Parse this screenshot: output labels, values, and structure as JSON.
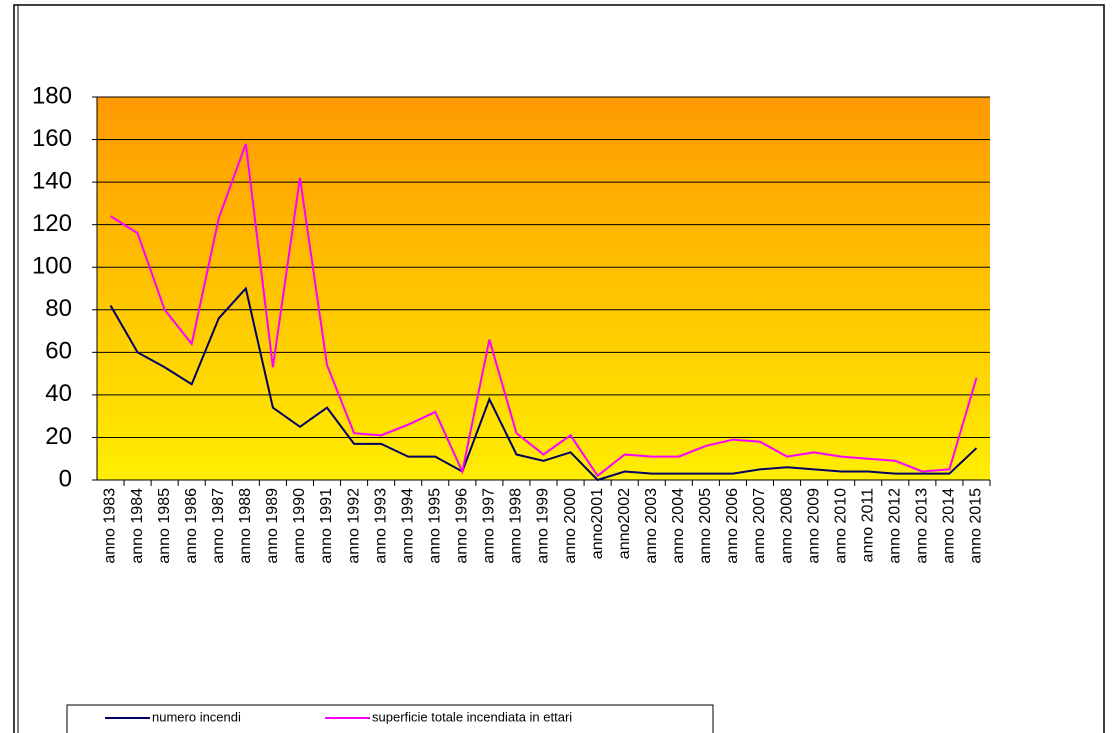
{
  "chart_data": {
    "type": "line",
    "categories": [
      "anno 1983",
      "anno 1984",
      "anno 1985",
      "anno 1986",
      "anno 1987",
      "anno 1988",
      "anno 1989",
      "anno 1990",
      "anno 1991",
      "anno 1992",
      "anno 1993",
      "anno 1994",
      "anno 1995",
      "anno 1996",
      "anno 1997",
      "anno 1998",
      "anno 1999",
      "anno 2000",
      "anno2001",
      "anno2002",
      "anno 2003",
      "anno 2004",
      "anno 2005",
      "anno 2006",
      "anno 2007",
      "anno 2008",
      "anno 2009",
      "anno 2010",
      "anno 2011",
      "anno 2012",
      "anno 2013",
      "anno 2014",
      "anno 2015"
    ],
    "series": [
      {
        "name": "numero incendi",
        "color": "#000066",
        "values": [
          82,
          60,
          53,
          45,
          76,
          90,
          34,
          25,
          34,
          17,
          17,
          11,
          11,
          4,
          38,
          12,
          9,
          13,
          0,
          4,
          3,
          3,
          3,
          3,
          5,
          6,
          5,
          4,
          4,
          3,
          3,
          3,
          15
        ]
      },
      {
        "name": "superficie totale incendiata in ettari",
        "color": "#ff00ff",
        "values": [
          124,
          116,
          80,
          64,
          123,
          158,
          53,
          142,
          54,
          22,
          21,
          26,
          32,
          4,
          66,
          22,
          12,
          21,
          2,
          12,
          11,
          11,
          16,
          19,
          18,
          11,
          13,
          11,
          10,
          9,
          4,
          5,
          48
        ]
      }
    ],
    "ylim": [
      0,
      180
    ],
    "yticks": [
      0,
      20,
      40,
      60,
      80,
      100,
      120,
      140,
      160,
      180
    ],
    "grid": true,
    "legend": "bottom"
  }
}
